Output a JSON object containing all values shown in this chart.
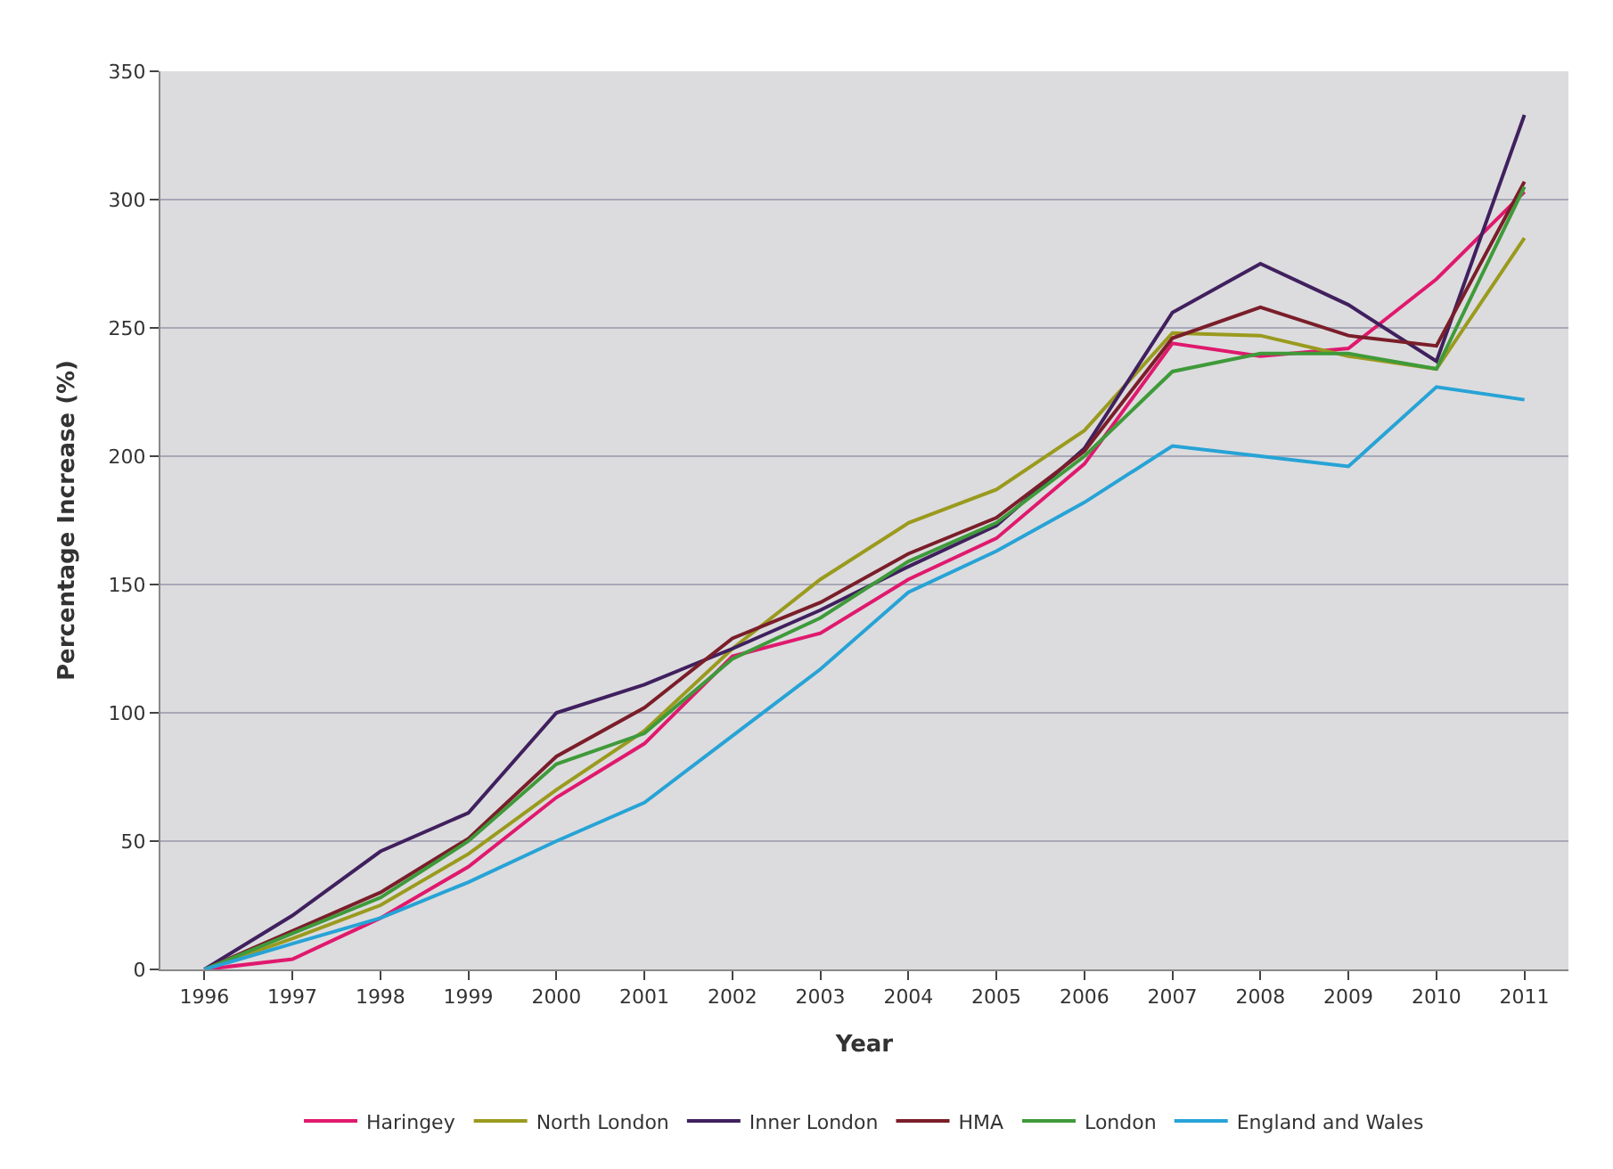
{
  "chart_data": {
    "type": "line",
    "xlabel": "Year",
    "ylabel": "Percentage Increase (%)",
    "categories": [
      "1996",
      "1997",
      "1998",
      "1999",
      "2000",
      "2001",
      "2002",
      "2003",
      "2004",
      "2005",
      "2006",
      "2007",
      "2008",
      "2009",
      "2010",
      "2011"
    ],
    "series": [
      {
        "name": "Haringey",
        "color": "#e0196e",
        "values": [
          0,
          4,
          20,
          40,
          67,
          88,
          122,
          131,
          152,
          168,
          197,
          244,
          239,
          242,
          269,
          303
        ]
      },
      {
        "name": "North London",
        "color": "#9a9a1e",
        "values": [
          0,
          12,
          25,
          45,
          70,
          93,
          125,
          152,
          174,
          187,
          210,
          248,
          247,
          239,
          234,
          285
        ]
      },
      {
        "name": "Inner London",
        "color": "#40205e",
        "values": [
          0,
          21,
          46,
          61,
          100,
          111,
          125,
          140,
          157,
          173,
          203,
          256,
          275,
          259,
          237,
          333
        ]
      },
      {
        "name": "HMA",
        "color": "#7a1e2a",
        "values": [
          0,
          15,
          30,
          51,
          83,
          102,
          129,
          143,
          162,
          176,
          202,
          246,
          258,
          247,
          243,
          307
        ]
      },
      {
        "name": "London",
        "color": "#3f9a3a",
        "values": [
          0,
          14,
          28,
          50,
          80,
          92,
          121,
          137,
          159,
          174,
          200,
          233,
          240,
          240,
          234,
          305
        ]
      },
      {
        "name": "England and Wales",
        "color": "#27a3d6",
        "values": [
          0,
          10,
          20,
          34,
          50,
          65,
          91,
          117,
          147,
          163,
          182,
          204,
          200,
          196,
          227,
          222
        ]
      }
    ],
    "ylim": [
      0,
      350
    ],
    "yticks": [
      0,
      50,
      100,
      150,
      200,
      250,
      300,
      350
    ],
    "grid": "y",
    "legend": "bottom",
    "marker": "none",
    "line_style": "solid"
  }
}
